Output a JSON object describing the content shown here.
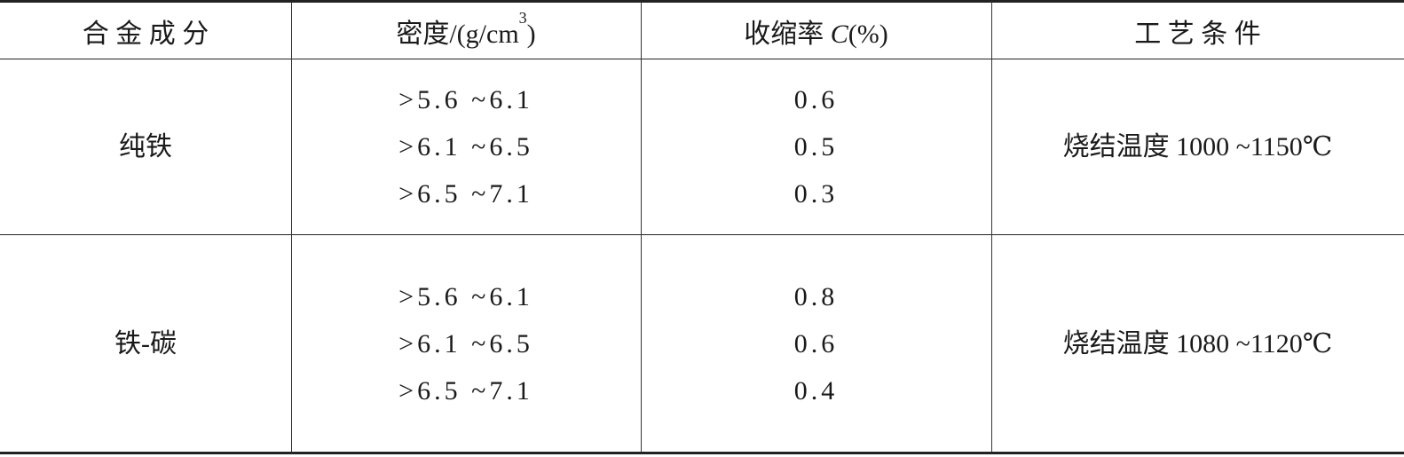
{
  "table": {
    "header": [
      [
        "合 金 成 分"
      ],
      [
        "密度/(g/cm",
        "3",
        ")"
      ],
      [
        "收缩率 ",
        "C",
        "(%)"
      ],
      [
        "工 艺 条 件"
      ]
    ],
    "rows": [
      {
        "alloy": "纯铁",
        "density": [
          ">5.6 ~6.1",
          ">6.1 ~6.5",
          ">6.5 ~7.1"
        ],
        "shrinkage": [
          0.6,
          0.5,
          0.3
        ],
        "process": "烧结温度 1000 ~1150℃"
      },
      {
        "alloy": "铁-碳",
        "density": [
          ">5.6 ~6.1",
          ">6.1 ~6.5",
          ">6.5 ~7.1"
        ],
        "shrinkage": [
          0.8,
          0.6,
          0.4
        ],
        "process": "烧结温度 1080 ~1120℃"
      }
    ]
  }
}
